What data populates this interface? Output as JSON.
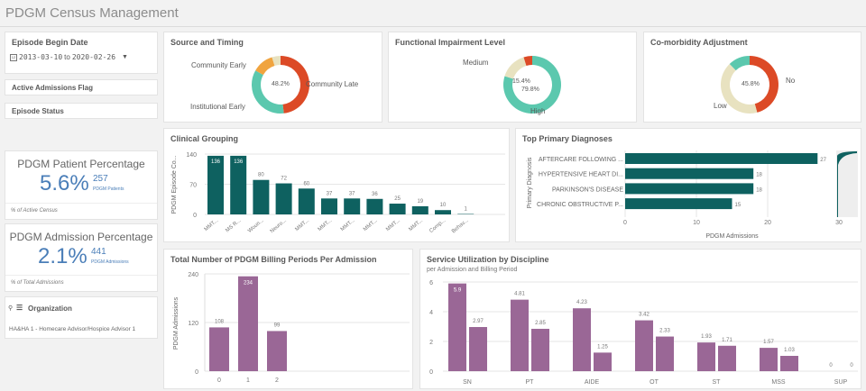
{
  "app": {
    "title": "PDGM Census Management"
  },
  "filters": {
    "episode_begin_date": {
      "label": "Episode Begin Date",
      "value_from": "2013-03-10",
      "to": "to",
      "value_to": "2020-02-26"
    },
    "active_admissions_flag": {
      "label": "Active Admissions Flag"
    },
    "episode_status": {
      "label": "Episode Status"
    },
    "organization": {
      "label": "Organization",
      "value": "HA&HA 1 - Homecare Advisor/Hospice Advisor 1"
    }
  },
  "kpis": [
    {
      "title": "PDGM Patient Percentage",
      "value": "5.6%",
      "secondary": "257",
      "secondary_label": "PDGM Patients",
      "footer": "% of Active Census"
    },
    {
      "title": "PDGM Admission Percentage",
      "value": "2.1%",
      "secondary": "441",
      "secondary_label": "PDGM Admissions",
      "footer": "% of Total Admissions"
    }
  ],
  "colors": {
    "red": "#dc4a26",
    "teal": "#5bc8ae",
    "beige": "#e8e2c0",
    "orange": "#f0a43f",
    "darkteal": "#0e6160",
    "purple": "#9a6796"
  },
  "chart_data": [
    {
      "type": "pie",
      "title": "Source and Timing",
      "center_label": "48.2%",
      "slices": [
        {
          "name": "Community Late",
          "value": 48.2,
          "color": "#dc4a26"
        },
        {
          "name": "Institutional Early",
          "value": 35,
          "color": "#5bc8ae"
        },
        {
          "name": "Community Early",
          "value": 12,
          "color": "#f0a43f"
        },
        {
          "name": "",
          "value": 4.8,
          "color": "#e8e2c0"
        }
      ]
    },
    {
      "type": "pie",
      "title": "Functional Impairment Level",
      "center_labels": [
        "15.4%",
        "79.8%"
      ],
      "slices": [
        {
          "name": "High",
          "value": 79.8,
          "color": "#5bc8ae"
        },
        {
          "name": "Medium",
          "value": 15.4,
          "color": "#e8e2c0"
        },
        {
          "name": "",
          "value": 4.8,
          "color": "#dc4a26"
        }
      ]
    },
    {
      "type": "pie",
      "title": "Co-morbidity Adjustment",
      "center_label": "45.8%",
      "slices": [
        {
          "name": "No",
          "value": 45.8,
          "color": "#dc4a26"
        },
        {
          "name": "Low",
          "value": 42,
          "color": "#e8e2c0"
        },
        {
          "name": "",
          "value": 12.2,
          "color": "#5bc8ae"
        }
      ]
    },
    {
      "type": "bar",
      "title": "Clinical Grouping",
      "ylabel": "PDGM Episode Co...",
      "ylim": [
        0,
        140
      ],
      "yticks": [
        0,
        70,
        140
      ],
      "categories": [
        "MMT...",
        "MS R...",
        "Woun...",
        "Neuro...",
        "MMT...",
        "MMT...",
        "MMT...",
        "MMT...",
        "MMT...",
        "MMT...",
        "Comp...",
        "Behav..."
      ],
      "values": [
        136,
        136,
        80,
        72,
        60,
        37,
        37,
        36,
        25,
        19,
        10,
        1
      ]
    },
    {
      "type": "bar",
      "orientation": "horizontal",
      "title": "Top Primary Diagnoses",
      "ylabel": "Primary Diagnosis",
      "xlabel": "PDGM Admissions",
      "xlim": [
        0,
        30
      ],
      "xticks": [
        0,
        10,
        20,
        30
      ],
      "categories": [
        "AFTERCARE FOLLOWING ...",
        "HYPERTENSIVE HEART DI...",
        "PARKINSON'S DISEASE",
        "CHRONIC OBSTRUCTIVE P..."
      ],
      "values": [
        27,
        18,
        18,
        15
      ]
    },
    {
      "type": "bar",
      "title": "Total Number of PDGM Billing Periods Per Admission",
      "ylabel": "PDGM Admissions",
      "ylim": [
        0,
        240
      ],
      "yticks": [
        0,
        120,
        240
      ],
      "categories": [
        "0",
        "1",
        "2"
      ],
      "values": [
        108,
        234,
        99
      ]
    },
    {
      "type": "bar",
      "title": "Service Utilization by Discipline",
      "subtitle": "per Admission and Billing Period",
      "ylim": [
        0,
        6
      ],
      "yticks": [
        0,
        2,
        4,
        6
      ],
      "categories": [
        "SN",
        "PT",
        "AIDE",
        "OT",
        "ST",
        "MSS",
        "SUP"
      ],
      "series": [
        {
          "values": [
            5.9,
            4.81,
            4.23,
            3.42,
            1.93,
            1.57,
            0
          ]
        },
        {
          "values": [
            2.97,
            2.85,
            1.25,
            2.33,
            1.71,
            1.03,
            0
          ]
        }
      ]
    }
  ]
}
